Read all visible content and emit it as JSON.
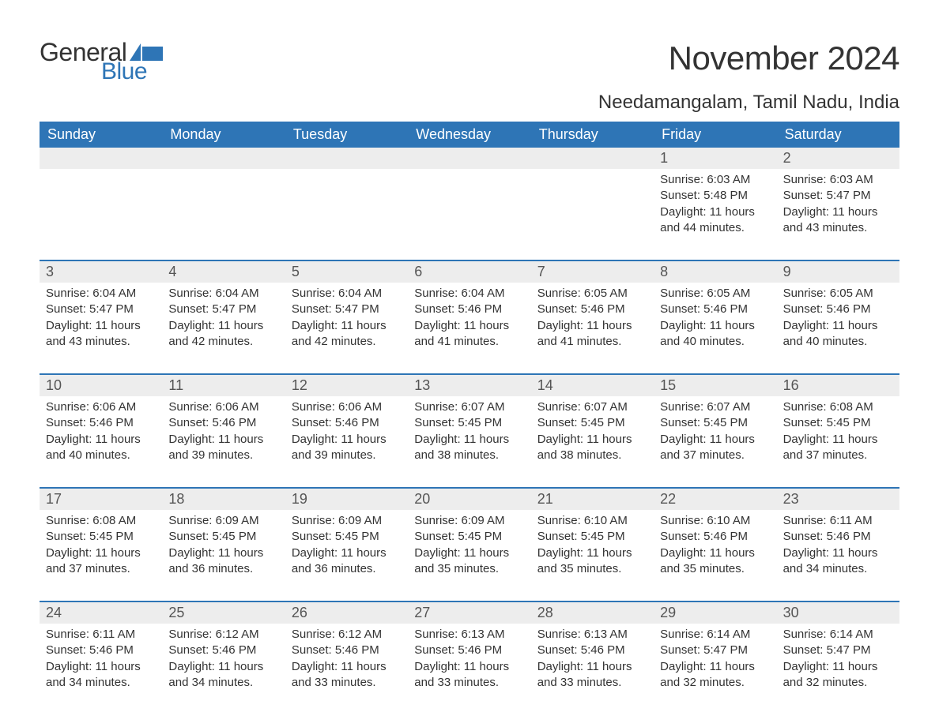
{
  "logo": {
    "top": "General",
    "bottom": "Blue",
    "flag_color": "#2e75b6"
  },
  "title": "November 2024",
  "location": "Needamangalam, Tamil Nadu, India",
  "colors": {
    "header_bg": "#2e75b6",
    "header_text": "#ffffff",
    "daynum_bg": "#ededed",
    "daynum_text": "#555555",
    "border": "#2e75b6",
    "body_text": "#333333",
    "page_bg": "#ffffff"
  },
  "day_headers": [
    "Sunday",
    "Monday",
    "Tuesday",
    "Wednesday",
    "Thursday",
    "Friday",
    "Saturday"
  ],
  "weeks": [
    {
      "nums": [
        "",
        "",
        "",
        "",
        "",
        "1",
        "2"
      ],
      "cells": [
        {
          "sunrise": "",
          "sunset": "",
          "daylight": ""
        },
        {
          "sunrise": "",
          "sunset": "",
          "daylight": ""
        },
        {
          "sunrise": "",
          "sunset": "",
          "daylight": ""
        },
        {
          "sunrise": "",
          "sunset": "",
          "daylight": ""
        },
        {
          "sunrise": "",
          "sunset": "",
          "daylight": ""
        },
        {
          "sunrise": "Sunrise: 6:03 AM",
          "sunset": "Sunset: 5:48 PM",
          "daylight": "Daylight: 11 hours and 44 minutes."
        },
        {
          "sunrise": "Sunrise: 6:03 AM",
          "sunset": "Sunset: 5:47 PM",
          "daylight": "Daylight: 11 hours and 43 minutes."
        }
      ]
    },
    {
      "nums": [
        "3",
        "4",
        "5",
        "6",
        "7",
        "8",
        "9"
      ],
      "cells": [
        {
          "sunrise": "Sunrise: 6:04 AM",
          "sunset": "Sunset: 5:47 PM",
          "daylight": "Daylight: 11 hours and 43 minutes."
        },
        {
          "sunrise": "Sunrise: 6:04 AM",
          "sunset": "Sunset: 5:47 PM",
          "daylight": "Daylight: 11 hours and 42 minutes."
        },
        {
          "sunrise": "Sunrise: 6:04 AM",
          "sunset": "Sunset: 5:47 PM",
          "daylight": "Daylight: 11 hours and 42 minutes."
        },
        {
          "sunrise": "Sunrise: 6:04 AM",
          "sunset": "Sunset: 5:46 PM",
          "daylight": "Daylight: 11 hours and 41 minutes."
        },
        {
          "sunrise": "Sunrise: 6:05 AM",
          "sunset": "Sunset: 5:46 PM",
          "daylight": "Daylight: 11 hours and 41 minutes."
        },
        {
          "sunrise": "Sunrise: 6:05 AM",
          "sunset": "Sunset: 5:46 PM",
          "daylight": "Daylight: 11 hours and 40 minutes."
        },
        {
          "sunrise": "Sunrise: 6:05 AM",
          "sunset": "Sunset: 5:46 PM",
          "daylight": "Daylight: 11 hours and 40 minutes."
        }
      ]
    },
    {
      "nums": [
        "10",
        "11",
        "12",
        "13",
        "14",
        "15",
        "16"
      ],
      "cells": [
        {
          "sunrise": "Sunrise: 6:06 AM",
          "sunset": "Sunset: 5:46 PM",
          "daylight": "Daylight: 11 hours and 40 minutes."
        },
        {
          "sunrise": "Sunrise: 6:06 AM",
          "sunset": "Sunset: 5:46 PM",
          "daylight": "Daylight: 11 hours and 39 minutes."
        },
        {
          "sunrise": "Sunrise: 6:06 AM",
          "sunset": "Sunset: 5:46 PM",
          "daylight": "Daylight: 11 hours and 39 minutes."
        },
        {
          "sunrise": "Sunrise: 6:07 AM",
          "sunset": "Sunset: 5:45 PM",
          "daylight": "Daylight: 11 hours and 38 minutes."
        },
        {
          "sunrise": "Sunrise: 6:07 AM",
          "sunset": "Sunset: 5:45 PM",
          "daylight": "Daylight: 11 hours and 38 minutes."
        },
        {
          "sunrise": "Sunrise: 6:07 AM",
          "sunset": "Sunset: 5:45 PM",
          "daylight": "Daylight: 11 hours and 37 minutes."
        },
        {
          "sunrise": "Sunrise: 6:08 AM",
          "sunset": "Sunset: 5:45 PM",
          "daylight": "Daylight: 11 hours and 37 minutes."
        }
      ]
    },
    {
      "nums": [
        "17",
        "18",
        "19",
        "20",
        "21",
        "22",
        "23"
      ],
      "cells": [
        {
          "sunrise": "Sunrise: 6:08 AM",
          "sunset": "Sunset: 5:45 PM",
          "daylight": "Daylight: 11 hours and 37 minutes."
        },
        {
          "sunrise": "Sunrise: 6:09 AM",
          "sunset": "Sunset: 5:45 PM",
          "daylight": "Daylight: 11 hours and 36 minutes."
        },
        {
          "sunrise": "Sunrise: 6:09 AM",
          "sunset": "Sunset: 5:45 PM",
          "daylight": "Daylight: 11 hours and 36 minutes."
        },
        {
          "sunrise": "Sunrise: 6:09 AM",
          "sunset": "Sunset: 5:45 PM",
          "daylight": "Daylight: 11 hours and 35 minutes."
        },
        {
          "sunrise": "Sunrise: 6:10 AM",
          "sunset": "Sunset: 5:45 PM",
          "daylight": "Daylight: 11 hours and 35 minutes."
        },
        {
          "sunrise": "Sunrise: 6:10 AM",
          "sunset": "Sunset: 5:46 PM",
          "daylight": "Daylight: 11 hours and 35 minutes."
        },
        {
          "sunrise": "Sunrise: 6:11 AM",
          "sunset": "Sunset: 5:46 PM",
          "daylight": "Daylight: 11 hours and 34 minutes."
        }
      ]
    },
    {
      "nums": [
        "24",
        "25",
        "26",
        "27",
        "28",
        "29",
        "30"
      ],
      "cells": [
        {
          "sunrise": "Sunrise: 6:11 AM",
          "sunset": "Sunset: 5:46 PM",
          "daylight": "Daylight: 11 hours and 34 minutes."
        },
        {
          "sunrise": "Sunrise: 6:12 AM",
          "sunset": "Sunset: 5:46 PM",
          "daylight": "Daylight: 11 hours and 34 minutes."
        },
        {
          "sunrise": "Sunrise: 6:12 AM",
          "sunset": "Sunset: 5:46 PM",
          "daylight": "Daylight: 11 hours and 33 minutes."
        },
        {
          "sunrise": "Sunrise: 6:13 AM",
          "sunset": "Sunset: 5:46 PM",
          "daylight": "Daylight: 11 hours and 33 minutes."
        },
        {
          "sunrise": "Sunrise: 6:13 AM",
          "sunset": "Sunset: 5:46 PM",
          "daylight": "Daylight: 11 hours and 33 minutes."
        },
        {
          "sunrise": "Sunrise: 6:14 AM",
          "sunset": "Sunset: 5:47 PM",
          "daylight": "Daylight: 11 hours and 32 minutes."
        },
        {
          "sunrise": "Sunrise: 6:14 AM",
          "sunset": "Sunset: 5:47 PM",
          "daylight": "Daylight: 11 hours and 32 minutes."
        }
      ]
    }
  ]
}
